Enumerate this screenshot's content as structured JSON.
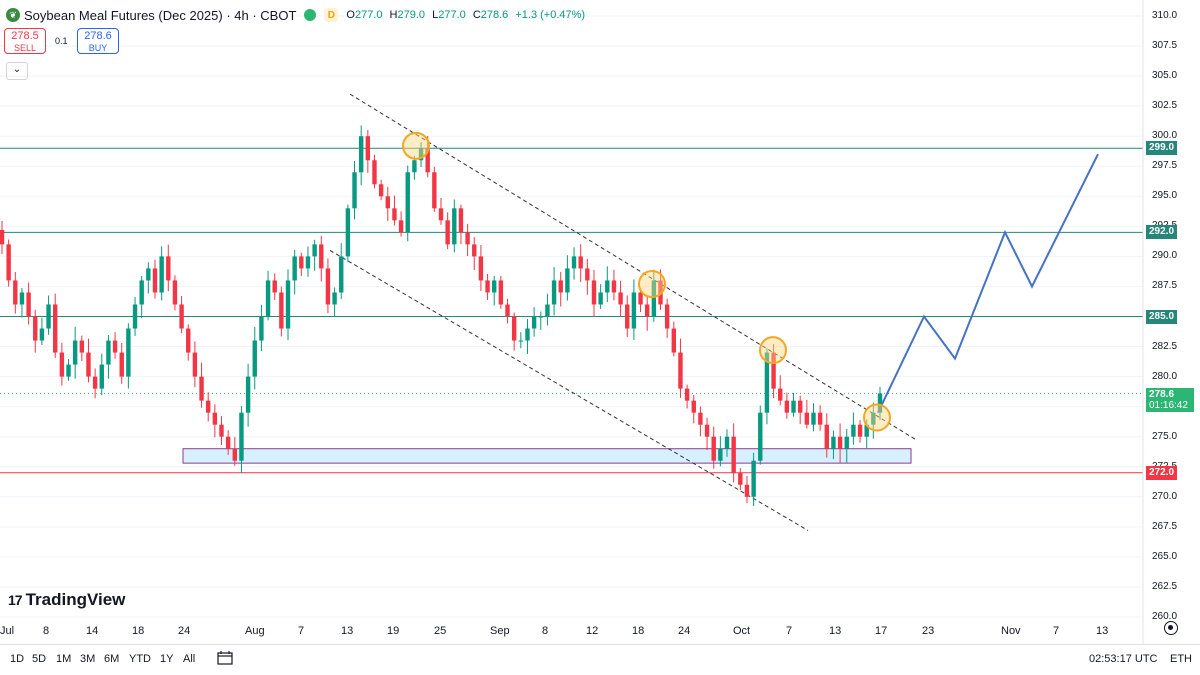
{
  "header": {
    "title": "Soybean Meal Futures (Dec 2025) · 4h · CBOT",
    "badge": "D",
    "ohlc": {
      "o_label": "O",
      "o": "277.0",
      "h_label": "H",
      "h": "279.0",
      "l_label": "L",
      "l": "277.0",
      "c_label": "C",
      "c": "278.6",
      "change": "+1.3 (+0.47%)"
    }
  },
  "trade": {
    "sell_price": "278.5",
    "sell_label": "SELL",
    "spread": "0.1",
    "buy_price": "278.6",
    "buy_label": "BUY",
    "collapse_icon": "chevron-down-icon"
  },
  "price_axis": {
    "labels": [
      "310.0",
      "307.5",
      "305.0",
      "302.5",
      "300.0",
      "297.5",
      "295.0",
      "292.5",
      "290.0",
      "287.5",
      "285.0",
      "282.5",
      "280.0",
      "277.5",
      "275.0",
      "272.5",
      "270.0",
      "267.5",
      "265.0",
      "262.5",
      "260.0"
    ]
  },
  "levels": [
    {
      "value": "299.0",
      "color": "#26867a"
    },
    {
      "value": "292.0",
      "color": "#26867a"
    },
    {
      "value": "285.0",
      "color": "#26867a"
    },
    {
      "value": "272.0",
      "color": "#f23645"
    }
  ],
  "current": {
    "price": "278.6",
    "countdown": "01:16:42",
    "color": "#2bb673"
  },
  "time_axis": {
    "labels": [
      "Jul",
      "8",
      "14",
      "18",
      "24",
      "Aug",
      "7",
      "13",
      "19",
      "25",
      "Sep",
      "8",
      "12",
      "18",
      "24",
      "Oct",
      "7",
      "13",
      "17",
      "23",
      "Nov",
      "7",
      "13"
    ]
  },
  "branding": {
    "logo_mark": "17",
    "name": "TradingView"
  },
  "toolbar": {
    "timeframes": [
      "1D",
      "5D",
      "1M",
      "3M",
      "6M",
      "YTD",
      "1Y",
      "All"
    ],
    "calendar_icon": "calendar-range-icon",
    "clock": "02:53:17 UTC",
    "session": "ETH",
    "settings_icon": "gear-icon"
  },
  "chart_data": {
    "type": "candlestick",
    "title": "Soybean Meal Futures (Dec 2025)",
    "interval": "4h",
    "ylim": [
      260,
      310
    ],
    "colors": {
      "up": "#089981",
      "down": "#f23645",
      "level": "#26867a",
      "support": "#f23645",
      "projection": "#4472c4",
      "zone_fill": "#d6f0ff",
      "zone_border": "#8e3a8e",
      "marker": "#f5a623"
    },
    "closes": [
      291,
      288,
      286,
      287,
      285,
      283,
      284,
      286,
      282,
      280,
      281,
      283,
      282,
      280,
      279,
      281,
      283,
      282,
      280,
      284,
      286,
      288,
      289,
      287,
      290,
      288,
      286,
      284,
      282,
      280,
      278,
      277,
      276,
      275,
      274,
      273,
      277,
      280,
      283,
      285,
      288,
      287,
      284,
      288,
      290,
      289,
      290,
      291,
      289,
      286,
      287,
      290,
      294,
      297,
      300,
      298,
      296,
      295,
      294,
      293,
      292,
      297,
      298,
      299,
      297,
      294,
      293,
      291,
      294,
      292,
      291,
      290,
      288,
      287,
      288,
      286,
      285,
      283,
      283,
      284,
      285,
      285,
      286,
      288,
      287,
      289,
      290,
      289,
      288,
      286,
      287,
      288,
      287,
      286,
      284,
      287,
      286,
      285,
      288,
      286,
      284,
      282,
      279,
      278,
      277,
      276,
      275,
      273,
      274,
      275,
      272,
      271,
      270,
      273,
      277,
      282,
      279,
      278,
      277,
      278,
      277,
      276,
      277,
      276,
      274,
      275,
      274,
      275,
      276,
      275,
      276,
      277,
      278.6
    ],
    "levels": [
      299.0,
      292.0,
      285.0,
      272.0
    ],
    "support_zone": [
      272.8,
      274.0
    ],
    "current_price": 278.6,
    "channel": {
      "upper": [
        [
          0.0,
          303.5
        ],
        [
          1.0,
          274.8
        ]
      ],
      "lower": [
        [
          0.0,
          290.5
        ],
        [
          1.0,
          267.2
        ]
      ]
    },
    "projection": [
      [
        0,
        277
      ],
      [
        1,
        285
      ],
      [
        2,
        281.5
      ],
      [
        3,
        292
      ],
      [
        4,
        287.5
      ],
      [
        5,
        298.5
      ]
    ],
    "markers": [
      299.2,
      287.7,
      282.2,
      276.6
    ]
  }
}
